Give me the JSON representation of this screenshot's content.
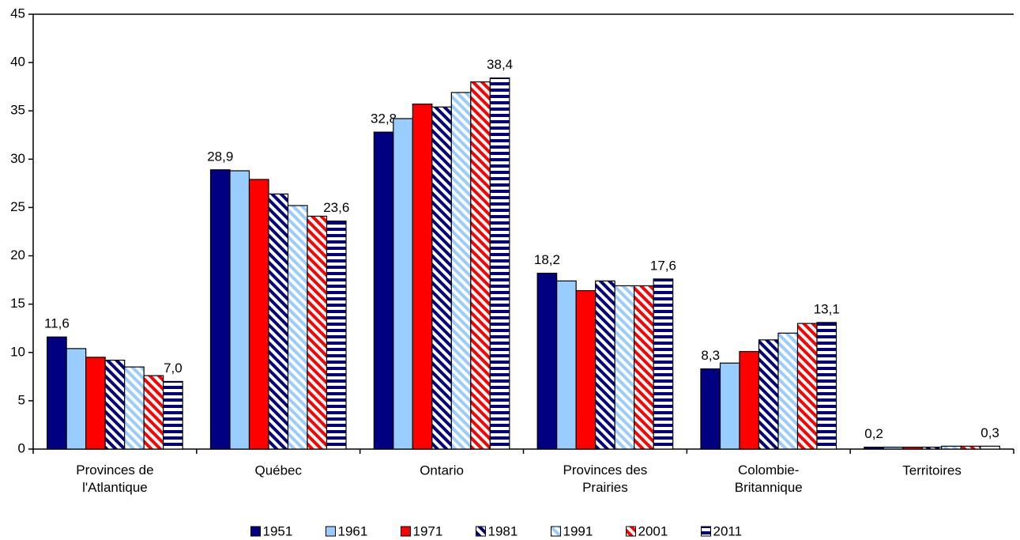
{
  "chart_data": {
    "type": "bar",
    "categories": [
      "Provinces de\nl'Atlantique",
      "Québec",
      "Ontario",
      "Provinces des\nPrairies",
      "Colombie-\nBritannique",
      "Territoires"
    ],
    "series": [
      {
        "name": "1951",
        "color": "#000080",
        "pattern": "solid",
        "values": [
          11.6,
          28.9,
          32.8,
          18.2,
          8.3,
          0.2
        ],
        "value_labels": [
          "11,6",
          "28,9",
          "32,8",
          "18,2",
          "8,3",
          "0,2"
        ]
      },
      {
        "name": "1961",
        "color": "#99ccff",
        "pattern": "solid",
        "values": [
          10.4,
          28.8,
          34.2,
          17.4,
          8.9,
          0.2
        ]
      },
      {
        "name": "1971",
        "color": "#ff0000",
        "pattern": "solid",
        "values": [
          9.5,
          27.9,
          35.7,
          16.4,
          10.1,
          0.2
        ]
      },
      {
        "name": "1981",
        "color": "#000080",
        "pattern": "diagonal",
        "values": [
          9.2,
          26.4,
          35.4,
          17.4,
          11.3,
          0.2
        ]
      },
      {
        "name": "1991",
        "color": "#99ccff",
        "pattern": "diagonal",
        "values": [
          8.5,
          25.2,
          36.9,
          16.9,
          12.0,
          0.3
        ]
      },
      {
        "name": "2001",
        "color": "#ff0000",
        "pattern": "diagonal",
        "values": [
          7.6,
          24.1,
          38.0,
          16.9,
          13.0,
          0.3
        ]
      },
      {
        "name": "2011",
        "color": "#000080",
        "pattern": "horizontal",
        "values": [
          7.0,
          23.6,
          38.4,
          17.6,
          13.1,
          0.3
        ],
        "value_labels": [
          "7,0",
          "23,6",
          "38,4",
          "17,6",
          "13,1",
          "0,3"
        ]
      }
    ],
    "ylim": [
      0,
      45
    ],
    "yticks": [
      0,
      5,
      10,
      15,
      20,
      25,
      30,
      35,
      40,
      45
    ],
    "grid": false,
    "legend": "bottom"
  }
}
